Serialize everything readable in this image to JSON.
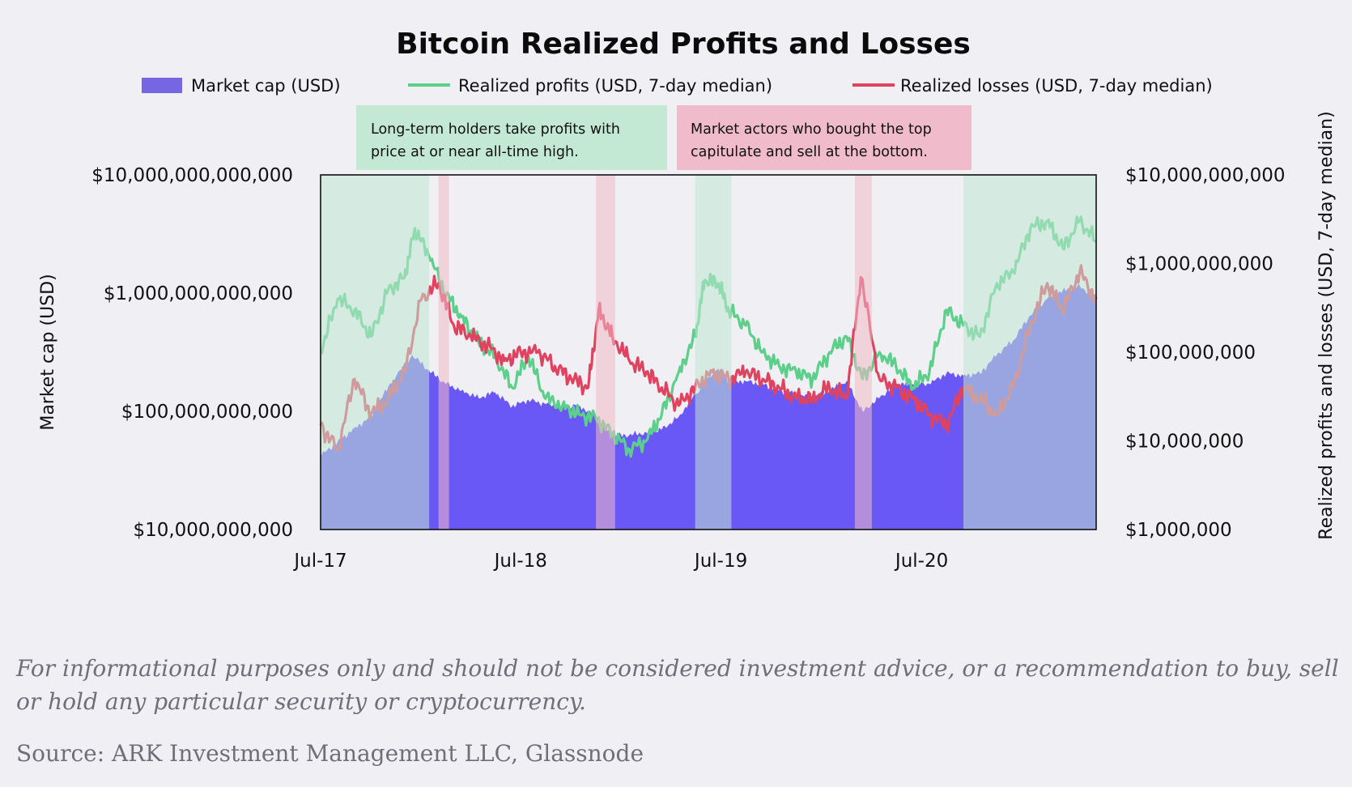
{
  "chart_data": {
    "type": "area",
    "title": "Bitcoin Realized Profits and Losses",
    "left_axis": {
      "label": "Market cap (USD)",
      "scale": "log",
      "range": [
        10000000000,
        10000000000000
      ],
      "ticks": [
        "$10,000,000,000",
        "$100,000,000,000",
        "$1,000,000,000,000",
        "$10,000,000,000,000"
      ],
      "tick_values": [
        10000000000,
        100000000000,
        1000000000000,
        10000000000000
      ]
    },
    "right_axis": {
      "label": "Realized profits and losses (USD, 7-day median)",
      "scale": "log",
      "range": [
        1000000,
        10000000000
      ],
      "ticks": [
        "$1,000,000",
        "$10,000,000",
        "$100,000,000",
        "$1,000,000,000",
        "$10,000,000,000"
      ],
      "tick_values": [
        1000000,
        10000000,
        100000000,
        1000000000,
        10000000000
      ]
    },
    "x_axis": {
      "range": [
        "2017-07-01",
        "2021-05-15"
      ],
      "ticks": [
        {
          "label": "Jul-17",
          "date": "2017-07-01"
        },
        {
          "label": "Jul-18",
          "date": "2018-07-01"
        },
        {
          "label": "Jul-19",
          "date": "2019-07-01"
        },
        {
          "label": "Jul-20",
          "date": "2020-07-01"
        }
      ]
    },
    "legend": [
      "Market cap (USD)",
      "Realized profits (USD, 7-day median)",
      "Realized losses (USD, 7-day median)"
    ],
    "legend_position": "top",
    "colors": {
      "market_cap": "#6b5cf5",
      "profits": "#5ccf8a",
      "losses": "#e0435f",
      "profit_band": "#bfe6d0",
      "loss_band": "#f0b9c6",
      "background": "#efeff4"
    },
    "series": [
      {
        "name": "Market cap (USD)",
        "axis": "left",
        "points": [
          [
            "2017-07-01",
            42000000000
          ],
          [
            "2017-08-01",
            55000000000
          ],
          [
            "2017-09-01",
            72000000000
          ],
          [
            "2017-10-01",
            90000000000
          ],
          [
            "2017-11-01",
            160000000000
          ],
          [
            "2017-12-15",
            300000000000
          ],
          [
            "2018-01-15",
            220000000000
          ],
          [
            "2018-02-15",
            170000000000
          ],
          [
            "2018-03-15",
            150000000000
          ],
          [
            "2018-04-15",
            130000000000
          ],
          [
            "2018-05-15",
            145000000000
          ],
          [
            "2018-06-15",
            110000000000
          ],
          [
            "2018-07-15",
            125000000000
          ],
          [
            "2018-08-15",
            115000000000
          ],
          [
            "2018-09-15",
            110000000000
          ],
          [
            "2018-10-15",
            112000000000
          ],
          [
            "2018-11-15",
            90000000000
          ],
          [
            "2018-12-15",
            62000000000
          ],
          [
            "2019-01-15",
            63000000000
          ],
          [
            "2019-02-15",
            66000000000
          ],
          [
            "2019-03-15",
            70000000000
          ],
          [
            "2019-04-15",
            90000000000
          ],
          [
            "2019-05-15",
            140000000000
          ],
          [
            "2019-06-26",
            230000000000
          ],
          [
            "2019-07-15",
            180000000000
          ],
          [
            "2019-08-15",
            180000000000
          ],
          [
            "2019-09-15",
            170000000000
          ],
          [
            "2019-10-15",
            150000000000
          ],
          [
            "2019-11-15",
            140000000000
          ],
          [
            "2019-12-15",
            130000000000
          ],
          [
            "2020-01-15",
            150000000000
          ],
          [
            "2020-02-15",
            180000000000
          ],
          [
            "2020-03-15",
            100000000000
          ],
          [
            "2020-04-15",
            130000000000
          ],
          [
            "2020-05-15",
            170000000000
          ],
          [
            "2020-06-15",
            170000000000
          ],
          [
            "2020-07-15",
            170000000000
          ],
          [
            "2020-08-15",
            210000000000
          ],
          [
            "2020-09-15",
            200000000000
          ],
          [
            "2020-10-15",
            210000000000
          ],
          [
            "2020-11-15",
            300000000000
          ],
          [
            "2020-12-15",
            400000000000
          ],
          [
            "2021-01-15",
            650000000000
          ],
          [
            "2021-02-15",
            900000000000
          ],
          [
            "2021-03-15",
            1050000000000
          ],
          [
            "2021-04-15",
            1150000000000
          ],
          [
            "2021-05-15",
            900000000000
          ]
        ]
      },
      {
        "name": "Realized profits (USD, 7-day median)",
        "axis": "right",
        "points": [
          [
            "2017-07-01",
            100000000
          ],
          [
            "2017-08-01",
            400000000
          ],
          [
            "2017-09-01",
            300000000
          ],
          [
            "2017-10-01",
            150000000
          ],
          [
            "2017-11-01",
            500000000
          ],
          [
            "2017-12-01",
            700000000
          ],
          [
            "2017-12-20",
            2500000000
          ],
          [
            "2018-01-15",
            1200000000
          ],
          [
            "2018-02-15",
            450000000
          ],
          [
            "2018-03-15",
            250000000
          ],
          [
            "2018-04-15",
            130000000
          ],
          [
            "2018-05-15",
            90000000
          ],
          [
            "2018-06-15",
            40000000
          ],
          [
            "2018-07-15",
            90000000
          ],
          [
            "2018-08-15",
            30000000
          ],
          [
            "2018-09-15",
            25000000
          ],
          [
            "2018-10-15",
            20000000
          ],
          [
            "2018-11-15",
            18000000
          ],
          [
            "2018-12-15",
            12000000
          ],
          [
            "2019-01-15",
            8000000
          ],
          [
            "2019-02-15",
            10000000
          ],
          [
            "2019-03-15",
            20000000
          ],
          [
            "2019-04-15",
            60000000
          ],
          [
            "2019-05-15",
            150000000
          ],
          [
            "2019-06-01",
            650000000
          ],
          [
            "2019-06-26",
            600000000
          ],
          [
            "2019-07-15",
            300000000
          ],
          [
            "2019-08-15",
            200000000
          ],
          [
            "2019-09-15",
            100000000
          ],
          [
            "2019-10-15",
            70000000
          ],
          [
            "2019-11-15",
            60000000
          ],
          [
            "2019-12-15",
            50000000
          ],
          [
            "2020-01-15",
            100000000
          ],
          [
            "2020-02-15",
            150000000
          ],
          [
            "2020-03-15",
            50000000
          ],
          [
            "2020-04-15",
            100000000
          ],
          [
            "2020-05-15",
            70000000
          ],
          [
            "2020-06-15",
            40000000
          ],
          [
            "2020-07-15",
            60000000
          ],
          [
            "2020-08-15",
            300000000
          ],
          [
            "2020-09-15",
            200000000
          ],
          [
            "2020-10-15",
            150000000
          ],
          [
            "2020-11-15",
            600000000
          ],
          [
            "2020-12-15",
            800000000
          ],
          [
            "2021-01-15",
            2500000000
          ],
          [
            "2021-02-15",
            3000000000
          ],
          [
            "2021-03-15",
            1500000000
          ],
          [
            "2021-04-15",
            3000000000
          ],
          [
            "2021-05-15",
            1800000000
          ]
        ]
      },
      {
        "name": "Realized losses (USD, 7-day median)",
        "axis": "right",
        "points": [
          [
            "2017-07-01",
            15000000
          ],
          [
            "2017-08-01",
            8000000
          ],
          [
            "2017-09-01",
            50000000
          ],
          [
            "2017-10-01",
            20000000
          ],
          [
            "2017-11-01",
            30000000
          ],
          [
            "2017-12-01",
            60000000
          ],
          [
            "2018-01-01",
            400000000
          ],
          [
            "2018-02-01",
            600000000
          ],
          [
            "2018-03-01",
            200000000
          ],
          [
            "2018-04-01",
            150000000
          ],
          [
            "2018-05-01",
            120000000
          ],
          [
            "2018-06-01",
            80000000
          ],
          [
            "2018-07-01",
            100000000
          ],
          [
            "2018-08-01",
            100000000
          ],
          [
            "2018-09-01",
            70000000
          ],
          [
            "2018-10-01",
            50000000
          ],
          [
            "2018-11-01",
            40000000
          ],
          [
            "2018-11-20",
            300000000
          ],
          [
            "2018-12-15",
            150000000
          ],
          [
            "2019-01-15",
            80000000
          ],
          [
            "2019-02-15",
            60000000
          ],
          [
            "2019-03-15",
            40000000
          ],
          [
            "2019-04-15",
            25000000
          ],
          [
            "2019-05-15",
            40000000
          ],
          [
            "2019-06-15",
            60000000
          ],
          [
            "2019-07-15",
            50000000
          ],
          [
            "2019-08-15",
            60000000
          ],
          [
            "2019-09-15",
            50000000
          ],
          [
            "2019-10-15",
            40000000
          ],
          [
            "2019-11-15",
            30000000
          ],
          [
            "2019-12-15",
            30000000
          ],
          [
            "2020-01-15",
            40000000
          ],
          [
            "2020-02-15",
            30000000
          ],
          [
            "2020-03-12",
            700000000
          ],
          [
            "2020-04-15",
            50000000
          ],
          [
            "2020-05-15",
            40000000
          ],
          [
            "2020-06-15",
            30000000
          ],
          [
            "2020-07-15",
            20000000
          ],
          [
            "2020-08-15",
            15000000
          ],
          [
            "2020-09-15",
            40000000
          ],
          [
            "2020-10-15",
            30000000
          ],
          [
            "2020-11-15",
            20000000
          ],
          [
            "2020-12-15",
            40000000
          ],
          [
            "2021-01-15",
            200000000
          ],
          [
            "2021-02-15",
            600000000
          ],
          [
            "2021-03-15",
            300000000
          ],
          [
            "2021-04-15",
            800000000
          ],
          [
            "2021-05-15",
            400000000
          ]
        ]
      }
    ],
    "bands": [
      {
        "kind": "profit",
        "start": "2017-07-01",
        "end": "2018-01-15"
      },
      {
        "kind": "loss",
        "start": "2018-02-01",
        "end": "2018-02-20"
      },
      {
        "kind": "loss",
        "start": "2018-11-15",
        "end": "2018-12-20"
      },
      {
        "kind": "profit",
        "start": "2019-05-15",
        "end": "2019-07-20"
      },
      {
        "kind": "loss",
        "start": "2020-03-01",
        "end": "2020-04-01"
      },
      {
        "kind": "profit",
        "start": "2020-09-15",
        "end": "2021-05-15"
      }
    ],
    "annotations": [
      {
        "kind": "profit",
        "lines": [
          "Long-term holders take profits with",
          "price at or near all-time high."
        ]
      },
      {
        "kind": "loss",
        "lines": [
          "Market actors who bought the top",
          "capitulate and sell at the bottom."
        ]
      }
    ]
  },
  "footer": {
    "disclaimer": "For informational purposes only and should not be considered investment advice, or a recommendation to buy, sell or hold any particular security or cryptocurrency.",
    "source": "Source: ARK Investment Management LLC, Glassnode"
  }
}
